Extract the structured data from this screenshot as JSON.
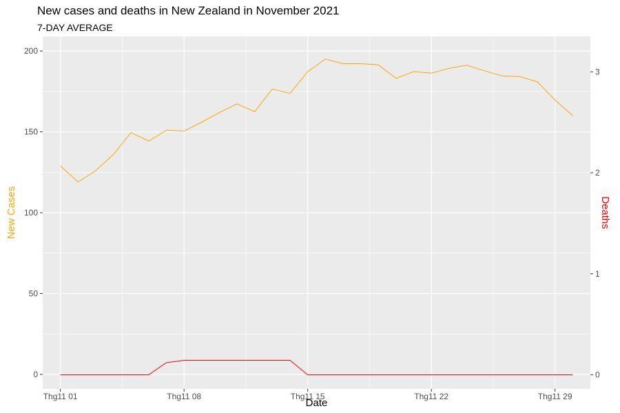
{
  "chart_data": {
    "type": "line",
    "title": "New cases and deaths in New Zealand in November 2021",
    "subtitle": "7-DAY AVERAGE",
    "xlabel": "Date",
    "ylabel_left": "New Cases",
    "ylabel_right": "Deaths",
    "x_ticks": [
      "Thg11 01",
      "Thg11 08",
      "Thg11 15",
      "Thg11 22",
      "Thg11 29"
    ],
    "y_left_ticks": [
      0,
      50,
      100,
      150,
      200
    ],
    "y_right_ticks": [
      0,
      1,
      2,
      3
    ],
    "x": [
      "2021-11-01",
      "2021-11-02",
      "2021-11-03",
      "2021-11-04",
      "2021-11-05",
      "2021-11-06",
      "2021-11-07",
      "2021-11-08",
      "2021-11-09",
      "2021-11-10",
      "2021-11-11",
      "2021-11-12",
      "2021-11-13",
      "2021-11-14",
      "2021-11-15",
      "2021-11-16",
      "2021-11-17",
      "2021-11-18",
      "2021-11-19",
      "2021-11-20",
      "2021-11-21",
      "2021-11-22",
      "2021-11-23",
      "2021-11-24",
      "2021-11-25",
      "2021-11-26",
      "2021-11-27",
      "2021-11-28",
      "2021-11-29",
      "2021-11-30"
    ],
    "xlim": [
      "2021-10-31",
      "2021-12-01"
    ],
    "ylim_left": [
      -9,
      209
    ],
    "ylim_right": [
      -0.14,
      3.35
    ],
    "series": [
      {
        "axis": "left",
        "color": "#FFA500",
        "values": [
          129,
          119,
          126,
          136,
          149.5,
          144.3,
          151,
          150.5,
          156,
          162,
          167.3,
          162.5,
          176.5,
          173.8,
          187.2,
          195,
          192.2,
          192.2,
          191.4,
          183.1,
          187.3,
          186.3,
          189.3,
          191.2,
          187.8,
          184.6,
          184.2,
          180.9,
          169.7,
          160
        ]
      },
      {
        "axis": "right",
        "color": "#FF0000",
        "values": [
          0,
          0,
          0,
          0,
          0,
          0,
          0.12,
          0.143,
          0.143,
          0.143,
          0.143,
          0.143,
          0.143,
          0.143,
          0,
          0,
          0,
          0,
          0,
          0,
          0,
          0,
          0,
          0,
          0,
          0,
          0,
          0,
          0,
          0
        ]
      }
    ],
    "colors": {
      "panel_background": "#EBEBEB",
      "gridline": "#FFFFFF",
      "tick_text": "#4D4D4D",
      "left_axis_title": "#FFA500",
      "right_axis_title": "#FF0000"
    },
    "grid": true
  }
}
